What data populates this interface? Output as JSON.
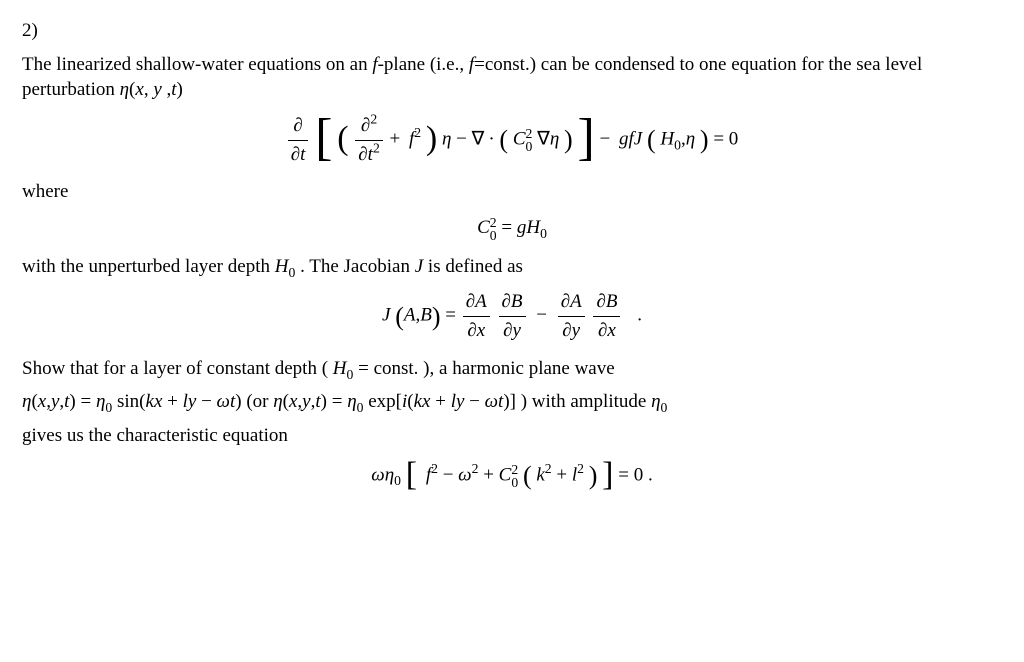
{
  "problem_number": "2)",
  "intro": {
    "part1": "The linearized shallow-water equations on an ",
    "fplane_it": "f",
    "part2": "-plane (i.e., ",
    "fconst_it": "f",
    "part3": "=const.) can be condensed to one equation for the sea level perturbation ",
    "eta": "η",
    "part4": "(",
    "x": "x",
    "comma1": ", ",
    "y": "y",
    "comma2": " ,",
    "t": "t",
    "part5": ")"
  },
  "eq1": {
    "d": "∂",
    "dt": "∂",
    "tvar": "t",
    "d2": "∂",
    "sq": "2",
    "dt2": "∂",
    "tvar2": "t",
    "plus": "+",
    "f": "f",
    "fsq": "2",
    "eta": "η",
    "minus": "−",
    "nabla": "∇",
    "dot": "·",
    "C": "C",
    "Csup": "2",
    "Csub": "0",
    "nabla2": "∇",
    "eta2": "η",
    "minus2": "−",
    "g": "g",
    "f2": "f",
    "J": "J",
    "H": "H",
    "Hsub": "0",
    "comma": ",",
    "eta3": "η",
    "eqz": "= 0"
  },
  "where": "where",
  "eq2": {
    "C": "C",
    "Csup": "2",
    "Csub": "0",
    "eq": " = ",
    "g": "g",
    "H": "H",
    "Hsub": "0"
  },
  "mid": {
    "p1": "with the unperturbed layer depth ",
    "H": "H",
    "Hsub": "0",
    "p2": " . The Jacobian ",
    "J": "J",
    "p3": " is defined as"
  },
  "eq3": {
    "J": "J",
    "A": "A",
    "B": "B",
    "eq": " = ",
    "dA": "∂A",
    "dB": "∂B",
    "dx": "∂x",
    "dy": "∂y",
    "minus": "−",
    "dot": "."
  },
  "show": {
    "p1": "Show  that  for  a  layer  of  constant  depth  ( ",
    "H": "H",
    "Hsub": "0",
    "p2": " = const. ),  a  harmonic  plane  wave",
    "p3a": "η",
    "p3args": "(",
    "x": "x",
    "c1": ",",
    "y": "y",
    "c2": ",",
    "t": "t",
    "p3b": ") = ",
    "eta0a": "η",
    "eta0sub": "0",
    "sin": " sin(",
    "k": "k",
    "x2": "x",
    "plus1": " + ",
    "l": "l",
    "y2": "y",
    "minus1": " − ",
    "om": "ω",
    "t2": "t",
    "close1": ")",
    "or": "  (or  ",
    "eta2": "η",
    "args2": "(",
    "x3": "x",
    "c3": ",",
    "y3": "y",
    "c4": ",",
    "t3": "t",
    "close2": ") = ",
    "eta0b": "η",
    "eta0sub2": "0",
    "exp": " exp",
    "open3": "[",
    "i": "i",
    "open4": "(",
    "k2": "k",
    "x4": "x",
    "plus2": " + ",
    "l2": "l",
    "y4": "y",
    "minus2": " − ",
    "om2": "ω",
    "t4": "t",
    "close4": ")",
    "close3": "]",
    "close5": " )  with  amplitude ",
    "eta0c": "η",
    "eta0sub3": "0",
    "p4": "gives us the characteristic equation"
  },
  "eq4": {
    "om": "ω",
    "eta": "η",
    "etasub": "0",
    "f": "f",
    "fsq": "2",
    "minus1": " − ",
    "om2": "ω",
    "omsq": "2",
    "plus": " + ",
    "C": "C",
    "Csup": "2",
    "Csub": "0",
    "k": "k",
    "ksq": "2",
    "plus2": " + ",
    "l": "l",
    "lsq": "2",
    "eqz": " = 0 ."
  }
}
